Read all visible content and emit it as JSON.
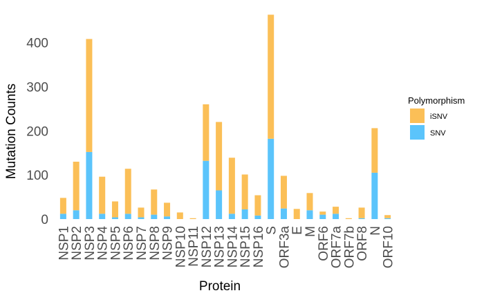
{
  "chart_data": {
    "type": "bar",
    "stacked": true,
    "xlabel": "Protein",
    "ylabel": "Mutation Counts",
    "ylim": [
      0,
      465
    ],
    "yticks": [
      0,
      100,
      200,
      300,
      400
    ],
    "grid": false,
    "legend": {
      "title": "Polymorphism",
      "placement": "right",
      "entries": [
        {
          "name": "iSNV",
          "color": "#FBBF57"
        },
        {
          "name": "SNV",
          "color": "#5BC4FB"
        }
      ]
    },
    "categories": [
      "NSP1",
      "NSP2",
      "NSP3",
      "NSP4",
      "NSP5",
      "NSP6",
      "NSP7",
      "NSP8",
      "NSP9",
      "NSP10",
      "NSP11",
      "NSP12",
      "NSP13",
      "NSP14",
      "NSP15",
      "NSP16",
      "S",
      "ORF3a",
      "E",
      "M",
      "ORF6",
      "ORF7a",
      "ORF7b",
      "ORF8",
      "N",
      "ORF10"
    ],
    "series": [
      {
        "name": "SNV",
        "color": "#5BC4FB",
        "values": [
          12,
          20,
          152,
          12,
          4,
          12,
          4,
          10,
          6,
          0,
          0,
          132,
          65,
          12,
          22,
          8,
          182,
          24,
          0,
          20,
          10,
          12,
          0,
          2,
          105,
          2
        ]
      },
      {
        "name": "iSNV",
        "color": "#FBBF57",
        "values": [
          36,
          110,
          256,
          84,
          36,
          102,
          22,
          57,
          31,
          15,
          2,
          128,
          155,
          127,
          79,
          46,
          281,
          74,
          23,
          39,
          7,
          16,
          2,
          24,
          101,
          7
        ]
      }
    ]
  }
}
